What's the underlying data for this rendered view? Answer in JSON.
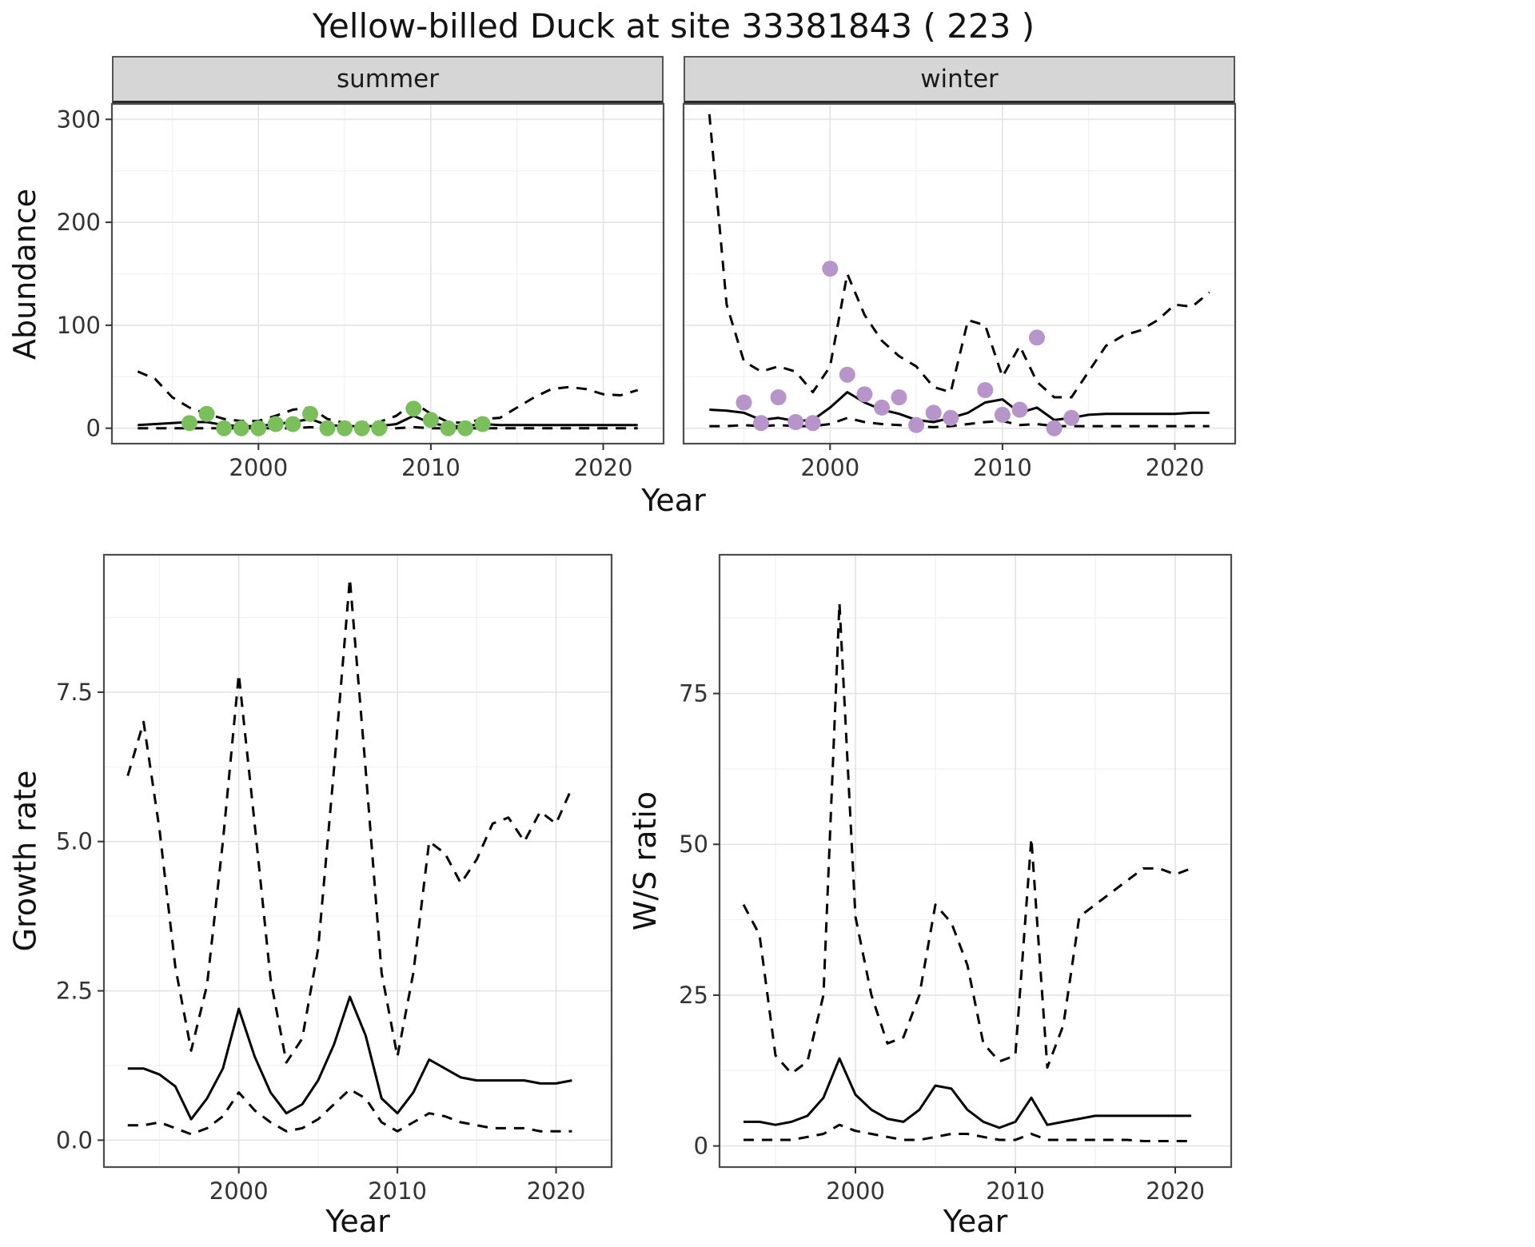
{
  "title": "Yellow-billed Duck at site 33381843 ( 223 )",
  "style": {
    "background": "#ffffff",
    "panel_bg": "#ffffff",
    "panel_border": "#4d4d4d",
    "grid_major": "#e3e3e3",
    "grid_minor": "#f1f1f1",
    "strip_fill": "#d6d6d6",
    "line_color": "#000000",
    "tick_color": "#333333",
    "tick_label_color": "#333333",
    "summer_point_color": "#7bbf5c",
    "winter_point_color": "#b794c9"
  },
  "chart_data": [
    {
      "id": "abundance_summer",
      "type": "line",
      "facet_label": "summer",
      "xlabel": "Year",
      "ylabel": "Abundance",
      "xlim": [
        1991.5,
        2023.5
      ],
      "ylim": [
        -15,
        315
      ],
      "xticks": [
        2000,
        2010,
        2020
      ],
      "xtick_labels": [
        "2000",
        "2010",
        "2020"
      ],
      "yticks": [
        0,
        100,
        200,
        300
      ],
      "ytick_labels": [
        "0",
        "100",
        "200",
        "300"
      ],
      "grid": true,
      "legend": "none",
      "x": [
        1993,
        1994,
        1995,
        1996,
        1997,
        1998,
        1999,
        2000,
        2001,
        2002,
        2003,
        2004,
        2005,
        2006,
        2007,
        2008,
        2009,
        2010,
        2011,
        2012,
        2013,
        2014,
        2015,
        2016,
        2017,
        2018,
        2019,
        2020,
        2021,
        2022
      ],
      "series": [
        {
          "name": "median",
          "style": "solid",
          "values": [
            3,
            4,
            5,
            6,
            6,
            3,
            2,
            2,
            4,
            6,
            9,
            3,
            2,
            2,
            2,
            4,
            12,
            5,
            2,
            2,
            4,
            3,
            3,
            3,
            3,
            3,
            3,
            3,
            3,
            3
          ]
        },
        {
          "name": "upper_ci",
          "style": "dashed",
          "values": [
            55,
            48,
            30,
            20,
            14,
            9,
            7,
            7,
            12,
            18,
            20,
            9,
            5,
            5,
            6,
            12,
            25,
            14,
            6,
            5,
            9,
            10,
            20,
            30,
            38,
            40,
            38,
            33,
            32,
            37
          ]
        },
        {
          "name": "lower_ci",
          "style": "dashed",
          "values": [
            0,
            0,
            0,
            0,
            0,
            0,
            0,
            0,
            0,
            0,
            1,
            0,
            0,
            0,
            0,
            0,
            1,
            0,
            0,
            0,
            0,
            0,
            0,
            0,
            0,
            0,
            0,
            0,
            0,
            0
          ]
        }
      ],
      "points": {
        "name": "observed_counts",
        "color": "#7bbf5c",
        "x": [
          1996,
          1997,
          1998,
          1999,
          2000,
          2001,
          2002,
          2003,
          2004,
          2005,
          2006,
          2007,
          2009,
          2010,
          2011,
          2012,
          2013
        ],
        "y": [
          5,
          14,
          0,
          0,
          0,
          4,
          4,
          14,
          0,
          0,
          0,
          0,
          19,
          8,
          0,
          0,
          4
        ]
      }
    },
    {
      "id": "abundance_winter",
      "type": "line",
      "facet_label": "winter",
      "xlabel": "Year",
      "ylabel": "Abundance",
      "xlim": [
        1991.5,
        2023.5
      ],
      "ylim": [
        -15,
        315
      ],
      "xticks": [
        2000,
        2010,
        2020
      ],
      "xtick_labels": [
        "2000",
        "2010",
        "2020"
      ],
      "yticks": [
        0,
        100,
        200,
        300
      ],
      "ytick_labels": [
        "0",
        "100",
        "200",
        "300"
      ],
      "grid": true,
      "legend": "none",
      "x": [
        1993,
        1994,
        1995,
        1996,
        1997,
        1998,
        1999,
        2000,
        2001,
        2002,
        2003,
        2004,
        2005,
        2006,
        2007,
        2008,
        2009,
        2010,
        2011,
        2012,
        2013,
        2014,
        2015,
        2016,
        2017,
        2018,
        2019,
        2020,
        2021,
        2022
      ],
      "series": [
        {
          "name": "median",
          "style": "solid",
          "values": [
            18,
            17,
            15,
            8,
            10,
            7,
            8,
            20,
            35,
            25,
            18,
            14,
            8,
            6,
            10,
            15,
            25,
            28,
            15,
            20,
            8,
            10,
            13,
            14,
            14,
            14,
            14,
            14,
            15,
            15
          ]
        },
        {
          "name": "upper_ci",
          "style": "dashed",
          "values": [
            305,
            120,
            65,
            55,
            60,
            55,
            35,
            60,
            150,
            110,
            85,
            70,
            60,
            40,
            35,
            105,
            100,
            50,
            80,
            45,
            30,
            30,
            55,
            80,
            90,
            95,
            105,
            120,
            118,
            132
          ]
        },
        {
          "name": "lower_ci",
          "style": "dashed",
          "values": [
            2,
            2,
            3,
            2,
            3,
            2,
            2,
            4,
            10,
            6,
            4,
            3,
            2,
            1,
            2,
            4,
            6,
            7,
            3,
            4,
            2,
            2,
            2,
            2,
            2,
            2,
            2,
            2,
            2,
            2
          ]
        }
      ],
      "points": {
        "name": "observed_counts",
        "color": "#b794c9",
        "x": [
          1995,
          1996,
          1997,
          1998,
          1999,
          2000,
          2001,
          2002,
          2003,
          2004,
          2005,
          2006,
          2007,
          2009,
          2010,
          2011,
          2012,
          2013,
          2014
        ],
        "y": [
          25,
          5,
          30,
          6,
          5,
          155,
          52,
          33,
          20,
          30,
          3,
          15,
          10,
          37,
          13,
          18,
          88,
          0,
          10
        ]
      }
    },
    {
      "id": "growth_rate",
      "type": "line",
      "facet_label": null,
      "xlabel": "Year",
      "ylabel": "Growth rate",
      "xlim": [
        1991.5,
        2023.5
      ],
      "ylim": [
        -0.45,
        9.8
      ],
      "xticks": [
        2000,
        2010,
        2020
      ],
      "xtick_labels": [
        "2000",
        "2010",
        "2020"
      ],
      "yticks": [
        0,
        2.5,
        5,
        7.5
      ],
      "ytick_labels": [
        "0.0",
        "2.5",
        "5.0",
        "7.5"
      ],
      "grid": true,
      "legend": "none",
      "x": [
        1993,
        1994,
        1995,
        1996,
        1997,
        1998,
        1999,
        2000,
        2001,
        2002,
        2003,
        2004,
        2005,
        2006,
        2007,
        2008,
        2009,
        2010,
        2011,
        2012,
        2013,
        2014,
        2015,
        2016,
        2017,
        2018,
        2019,
        2020,
        2021
      ],
      "series": [
        {
          "name": "median",
          "style": "solid",
          "values": [
            1.2,
            1.2,
            1.1,
            0.9,
            0.35,
            0.7,
            1.2,
            2.2,
            1.4,
            0.8,
            0.45,
            0.6,
            1.0,
            1.6,
            2.4,
            1.75,
            0.7,
            0.45,
            0.8,
            1.35,
            1.2,
            1.05,
            1.0,
            1.0,
            1.0,
            1.0,
            0.95,
            0.95,
            1.0
          ]
        },
        {
          "name": "upper_ci",
          "style": "dashed",
          "values": [
            6.1,
            7.0,
            5.2,
            2.9,
            1.5,
            2.6,
            5.0,
            7.8,
            5.3,
            2.7,
            1.3,
            1.7,
            3.2,
            6.2,
            9.4,
            6.2,
            2.8,
            1.4,
            2.8,
            5.0,
            4.8,
            4.3,
            4.7,
            5.3,
            5.4,
            5.0,
            5.5,
            5.3,
            5.9
          ]
        },
        {
          "name": "lower_ci",
          "style": "dashed",
          "values": [
            0.25,
            0.25,
            0.3,
            0.2,
            0.1,
            0.2,
            0.4,
            0.8,
            0.5,
            0.3,
            0.15,
            0.2,
            0.35,
            0.6,
            0.85,
            0.7,
            0.3,
            0.15,
            0.3,
            0.45,
            0.4,
            0.3,
            0.25,
            0.2,
            0.2,
            0.2,
            0.15,
            0.15,
            0.15
          ]
        }
      ],
      "points": null
    },
    {
      "id": "ws_ratio",
      "type": "line",
      "facet_label": null,
      "xlabel": "Year",
      "ylabel": "W/S ratio",
      "xlim": [
        1991.5,
        2023.5
      ],
      "ylim": [
        -3.5,
        98
      ],
      "xticks": [
        2000,
        2010,
        2020
      ],
      "xtick_labels": [
        "2000",
        "2010",
        "2020"
      ],
      "yticks": [
        0,
        25,
        50,
        75
      ],
      "ytick_labels": [
        "0",
        "25",
        "50",
        "75"
      ],
      "grid": true,
      "legend": "none",
      "x": [
        1993,
        1994,
        1995,
        1996,
        1997,
        1998,
        1999,
        2000,
        2001,
        2002,
        2003,
        2004,
        2005,
        2006,
        2007,
        2008,
        2009,
        2010,
        2011,
        2012,
        2013,
        2014,
        2015,
        2016,
        2017,
        2018,
        2019,
        2020,
        2021
      ],
      "series": [
        {
          "name": "median",
          "style": "solid",
          "values": [
            4,
            4,
            3.5,
            4,
            5,
            8,
            14.5,
            8.5,
            6,
            4.5,
            4,
            6,
            10,
            9.5,
            6,
            4,
            3,
            4,
            8,
            3.5,
            4,
            4.5,
            5,
            5,
            5,
            5,
            5,
            5,
            5
          ]
        },
        {
          "name": "upper_ci",
          "style": "dashed",
          "values": [
            40,
            35,
            15,
            12,
            14,
            25,
            90,
            38,
            25,
            17,
            18,
            25,
            40,
            37,
            30,
            17,
            14,
            15,
            51,
            13,
            20,
            38,
            40,
            42,
            44,
            46,
            46,
            45,
            46
          ]
        },
        {
          "name": "lower_ci",
          "style": "dashed",
          "values": [
            1,
            1,
            1,
            1,
            1.5,
            2,
            3.5,
            2.5,
            2,
            1.5,
            1,
            1,
            1.5,
            2,
            2,
            1.5,
            1,
            1,
            2,
            1,
            1,
            1,
            1,
            1,
            1,
            0.8,
            0.8,
            0.8,
            0.8
          ]
        }
      ],
      "points": null
    }
  ]
}
